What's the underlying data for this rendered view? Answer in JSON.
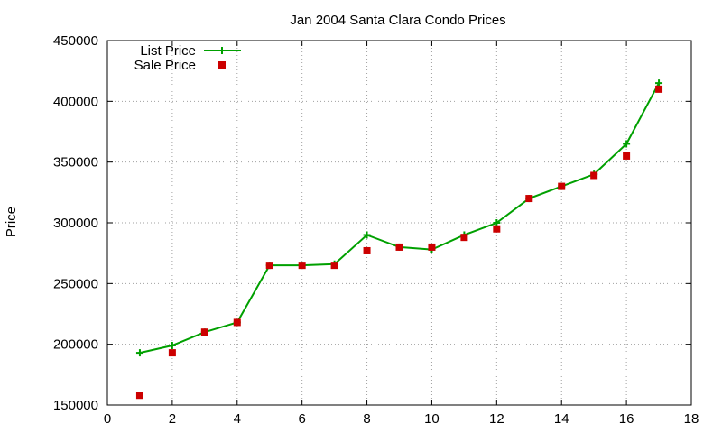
{
  "chart_data": {
    "type": "line",
    "title": "Jan 2004 Santa Clara Condo Prices",
    "xlabel": "",
    "ylabel": "Price",
    "xlim": [
      0,
      18
    ],
    "ylim": [
      150000,
      450000
    ],
    "x_ticks": [
      0,
      2,
      4,
      6,
      8,
      10,
      12,
      14,
      16,
      18
    ],
    "y_ticks": [
      150000,
      200000,
      250000,
      300000,
      350000,
      400000,
      450000
    ],
    "grid": true,
    "legend_position": "top-left",
    "series": [
      {
        "name": "List Price",
        "style": "line-with-plus-markers",
        "color": "#00a000",
        "x": [
          1,
          2,
          3,
          4,
          5,
          6,
          7,
          8,
          9,
          10,
          11,
          12,
          13,
          14,
          15,
          16,
          17
        ],
        "values": [
          193000,
          199000,
          210000,
          218000,
          265000,
          265000,
          266000,
          290000,
          280000,
          278000,
          290000,
          300000,
          320000,
          330000,
          340000,
          365000,
          415000
        ]
      },
      {
        "name": "Sale Price",
        "style": "square-markers",
        "color": "#cc0000",
        "x": [
          1,
          2,
          3,
          4,
          5,
          6,
          7,
          8,
          9,
          10,
          11,
          12,
          13,
          14,
          15,
          16,
          17
        ],
        "values": [
          158000,
          193000,
          210000,
          218000,
          265000,
          265000,
          265000,
          277000,
          280000,
          280000,
          288000,
          295000,
          320000,
          330000,
          339000,
          355000,
          410000
        ]
      }
    ]
  }
}
